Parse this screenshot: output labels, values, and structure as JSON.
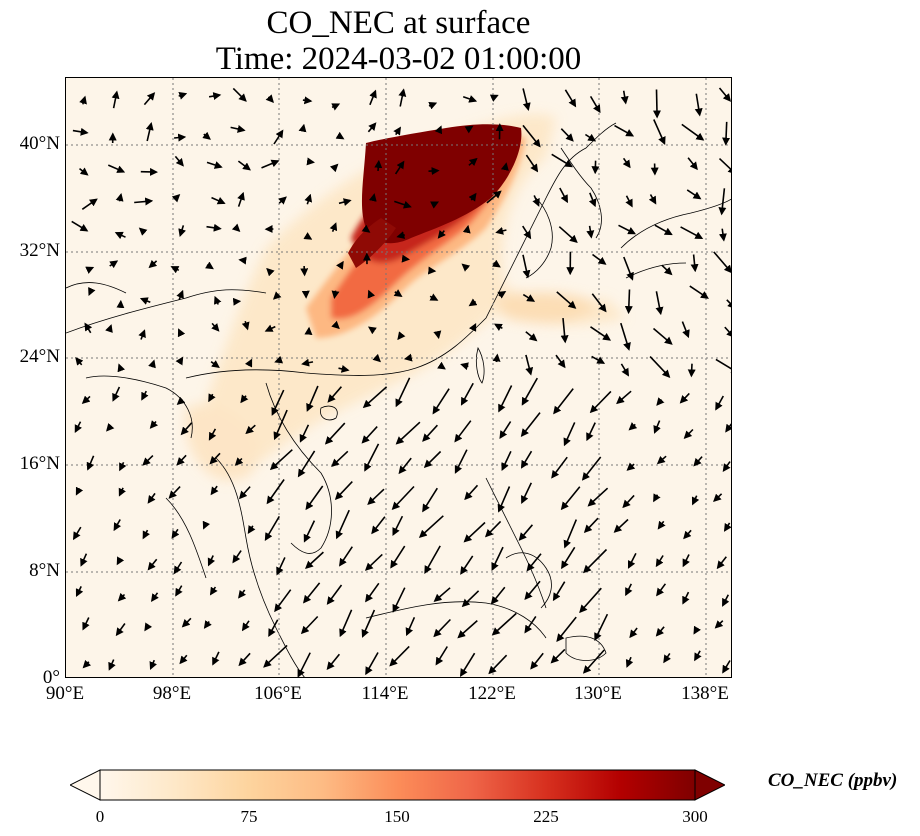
{
  "title": {
    "line1": "CO_NEC at surface",
    "line2": "Time: 2024-03-02 01:00:00"
  },
  "map": {
    "lon_range": [
      90,
      140
    ],
    "lat_range": [
      0,
      45
    ],
    "x_ticks": [
      "90°E",
      "98°E",
      "106°E",
      "114°E",
      "122°E",
      "130°E",
      "138°E"
    ],
    "y_ticks": [
      "0°",
      "8°N",
      "16°N",
      "24°N",
      "32°N",
      "40°N"
    ],
    "gridlines": true,
    "field": "CO_NEC",
    "level": "surface",
    "vectors": "wind arrows"
  },
  "colorbar": {
    "label": "CO_NEC (ppbv)",
    "ticks": [
      "0",
      "75",
      "150",
      "225",
      "300"
    ],
    "range": [
      0,
      300
    ],
    "extend": "both",
    "colormap": "OrRd",
    "colors": [
      "#fff7ec",
      "#fee8c8",
      "#fdd49e",
      "#fdbb84",
      "#fc8d59",
      "#ef6548",
      "#d7301f",
      "#b30000",
      "#7f0000"
    ]
  }
}
